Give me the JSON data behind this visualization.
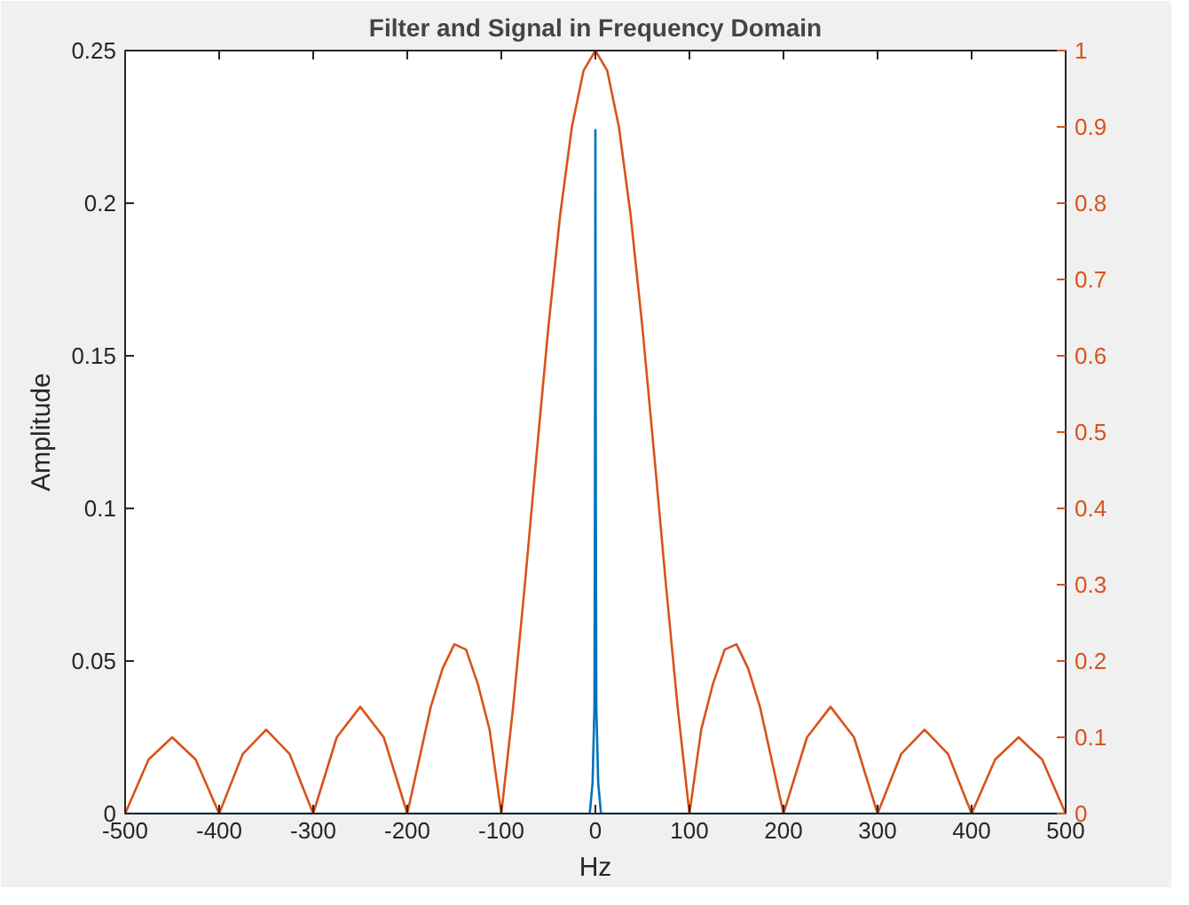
{
  "chart_data": {
    "type": "line",
    "title": "Filter and Signal in Frequency Domain",
    "xlabel": "Hz",
    "ylabel": "Amplitude",
    "xlim": [
      -500,
      500
    ],
    "xticks": [
      -500,
      -400,
      -300,
      -200,
      -100,
      0,
      100,
      200,
      300,
      400,
      500
    ],
    "ylim": [
      0,
      0.25
    ],
    "yticks": [
      0,
      0.05,
      0.1,
      0.15,
      0.2,
      0.25
    ],
    "y2lim": [
      0,
      1
    ],
    "y2ticks": [
      0,
      0.1,
      0.2,
      0.3,
      0.4,
      0.5,
      0.6,
      0.7,
      0.8,
      0.9,
      1
    ],
    "grid": false,
    "series": [
      {
        "color": "#d95319",
        "axis": "y2",
        "x": [
          -500,
          -475,
          -450,
          -425,
          -400,
          -375,
          -350,
          -325,
          -300,
          -275,
          -250,
          -225,
          -200,
          -187.5,
          -175,
          -162.5,
          -150,
          -137.5,
          -125,
          -112.5,
          -100,
          -87.5,
          -75,
          -62.5,
          -50,
          -37.5,
          -25,
          -12.5,
          0,
          12.5,
          25,
          37.5,
          50,
          62.5,
          75,
          87.5,
          100,
          112.5,
          125,
          137.5,
          150,
          162.5,
          175,
          187.5,
          200,
          225,
          250,
          275,
          300,
          325,
          350,
          375,
          400,
          425,
          450,
          475,
          500
        ],
        "values": [
          0,
          0.071,
          0.1,
          0.071,
          0,
          0.078,
          0.11,
          0.078,
          0,
          0.1,
          0.14,
          0.1,
          0,
          0.07,
          0.14,
          0.19,
          0.222,
          0.215,
          0.17,
          0.11,
          0,
          0.139,
          0.3,
          0.471,
          0.637,
          0.784,
          0.9,
          0.974,
          1,
          0.974,
          0.9,
          0.784,
          0.637,
          0.471,
          0.3,
          0.139,
          0,
          0.11,
          0.17,
          0.215,
          0.222,
          0.19,
          0.14,
          0.07,
          0,
          0.1,
          0.14,
          0.1,
          0,
          0.078,
          0.11,
          0.078,
          0,
          0.071,
          0.1,
          0.071,
          0
        ]
      },
      {
        "color": "#0072bd",
        "x": [
          -500,
          -6,
          -3,
          -1,
          -0.5,
          0,
          0.5,
          1,
          3,
          6,
          500
        ],
        "values": [
          0,
          0,
          0.01,
          0.035,
          0.1,
          0.224,
          0.1,
          0.035,
          0.01,
          0,
          0
        ]
      }
    ]
  }
}
